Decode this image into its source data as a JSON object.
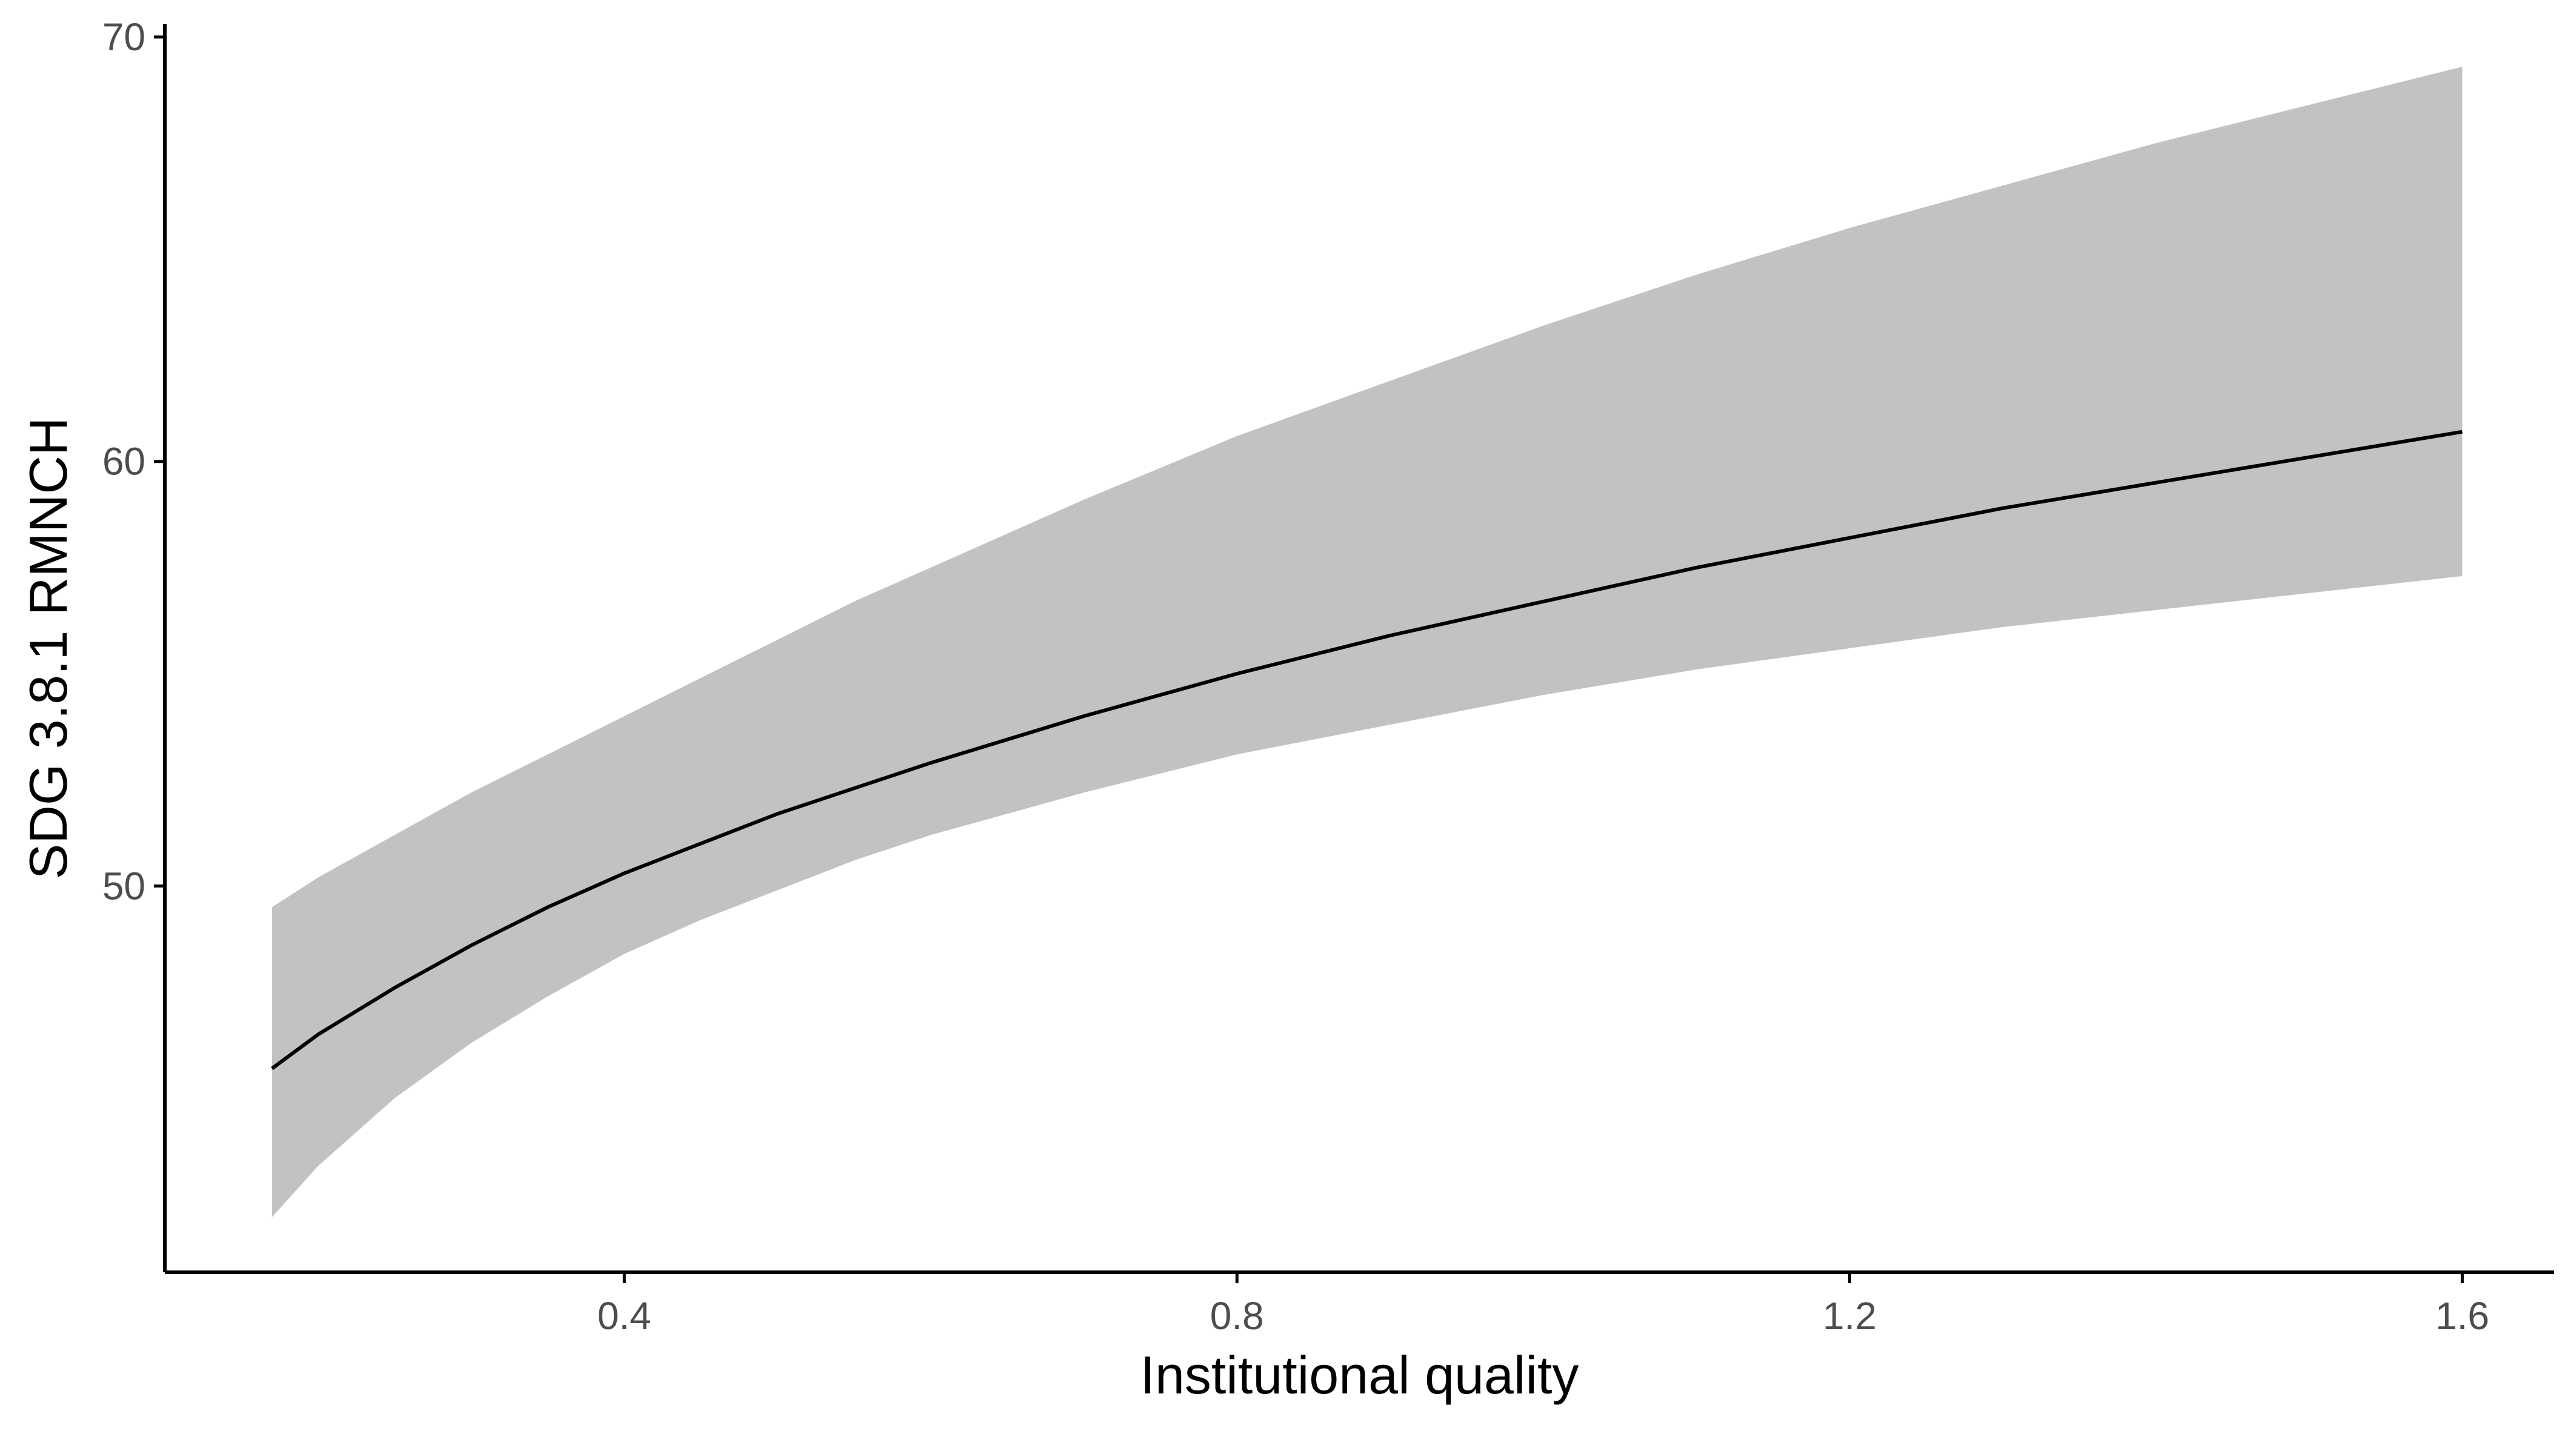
{
  "chart_data": {
    "type": "line",
    "title": "",
    "xlabel": "Institutional quality",
    "ylabel": "SDG 3.8.1 RMNCH",
    "xlim": [
      0.1,
      1.66
    ],
    "ylim": [
      40.9,
      70.3
    ],
    "x_ticks": [
      0.4,
      0.8,
      1.2,
      1.6
    ],
    "x_tick_labels": [
      "0.4",
      "0.8",
      "1.2",
      "1.6"
    ],
    "y_ticks": [
      50,
      60,
      70
    ],
    "y_tick_labels": [
      "50",
      "60",
      "70"
    ],
    "grid": false,
    "legend": "none",
    "colors": {
      "line": "#000000",
      "ribbon": "#c2c2c2",
      "axis": "#000000"
    },
    "series": [
      {
        "x": [
          0.17,
          0.2,
          0.25,
          0.3,
          0.35,
          0.4,
          0.45,
          0.5,
          0.55,
          0.6,
          0.7,
          0.8,
          0.9,
          1.0,
          1.1,
          1.2,
          1.3,
          1.4,
          1.5,
          1.6
        ],
        "y": [
          45.7,
          46.5,
          47.6,
          48.6,
          49.5,
          50.3,
          51.0,
          51.7,
          52.3,
          52.9,
          54.0,
          55.0,
          55.9,
          56.7,
          57.5,
          58.2,
          58.9,
          59.5,
          60.1,
          60.7
        ],
        "lower": [
          42.2,
          43.4,
          45.0,
          46.3,
          47.4,
          48.4,
          49.2,
          49.9,
          50.6,
          51.2,
          52.2,
          53.1,
          53.8,
          54.5,
          55.1,
          55.6,
          56.1,
          56.5,
          56.9,
          57.3
        ],
        "upper": [
          49.5,
          50.2,
          51.2,
          52.2,
          53.1,
          54.0,
          54.9,
          55.8,
          56.7,
          57.5,
          59.1,
          60.6,
          61.9,
          63.2,
          64.4,
          65.5,
          66.5,
          67.5,
          68.4,
          69.3
        ]
      }
    ]
  }
}
